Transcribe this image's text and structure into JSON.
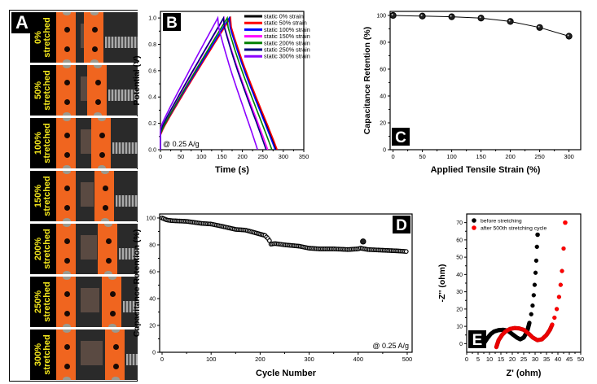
{
  "panel_a": {
    "label": "A",
    "rows": [
      {
        "pct": "0%",
        "word": "stretched",
        "strain": 0
      },
      {
        "pct": "50%",
        "word": "stretched",
        "strain": 50
      },
      {
        "pct": "100%",
        "word": "stretched",
        "strain": 100
      },
      {
        "pct": "150%",
        "word": "stretched",
        "strain": 150
      },
      {
        "pct": "200%",
        "word": "stretched",
        "strain": 200
      },
      {
        "pct": "250%",
        "word": "stretched",
        "strain": 250
      },
      {
        "pct": "300%",
        "word": "stretched",
        "strain": 300
      }
    ]
  },
  "chart_data": [
    {
      "id": "B",
      "panel_label": "B",
      "type": "line",
      "title": "",
      "xlabel": "Time (s)",
      "ylabel": "Potential (V)",
      "xlim": [
        0,
        350
      ],
      "ylim": [
        0,
        1.05
      ],
      "xticks": [
        0,
        50,
        100,
        150,
        200,
        250,
        300,
        350
      ],
      "yticks": [
        0.0,
        0.2,
        0.4,
        0.6,
        0.8,
        1.0
      ],
      "ytick_labels": [
        "0.0",
        "0.2",
        "0.4",
        "0.6",
        "0.8",
        "1.0"
      ],
      "annotation": "@ 0.25 A/g",
      "legend_position": "top-right",
      "series": [
        {
          "name": "static 0% strain",
          "color": "#000000",
          "peak_time": 170,
          "end_time": 283,
          "v0": 0.12
        },
        {
          "name": "static 50% strain",
          "color": "#ff0000",
          "peak_time": 171,
          "end_time": 285,
          "v0": 0.11
        },
        {
          "name": "static 100% strain",
          "color": "#0000ff",
          "peak_time": 168,
          "end_time": 280,
          "v0": 0.12
        },
        {
          "name": "static 150% strain",
          "color": "#ff00ff",
          "peak_time": 155,
          "end_time": 262,
          "v0": 0.13
        },
        {
          "name": "static 200% strain",
          "color": "#008000",
          "peak_time": 163,
          "end_time": 272,
          "v0": 0.12
        },
        {
          "name": "static 250% strain",
          "color": "#000080",
          "peak_time": 154,
          "end_time": 258,
          "v0": 0.14
        },
        {
          "name": "static 300% strain",
          "color": "#8b00ff",
          "peak_time": 140,
          "end_time": 237,
          "v0": 0.16
        }
      ]
    },
    {
      "id": "C",
      "panel_label": "C",
      "type": "line",
      "title": "",
      "xlabel": "Applied Tensile Strain (%)",
      "ylabel": "Capacitance Retention (%)",
      "xlim": [
        -5,
        320
      ],
      "ylim": [
        0,
        103
      ],
      "xticks": [
        0,
        50,
        100,
        150,
        200,
        250,
        300
      ],
      "yticks": [
        0,
        20,
        40,
        60,
        80,
        100
      ],
      "x": [
        0,
        50,
        100,
        150,
        200,
        250,
        300
      ],
      "values": [
        100,
        99.5,
        99,
        98,
        95.5,
        91,
        84.5
      ]
    },
    {
      "id": "D",
      "panel_label": "D",
      "type": "scatter",
      "title": "",
      "xlabel": "Cycle Number",
      "ylabel": "Capacitance Retention (%)",
      "xlim": [
        -5,
        510
      ],
      "ylim": [
        0,
        103
      ],
      "xticks": [
        0,
        100,
        200,
        300,
        400,
        500
      ],
      "yticks": [
        0,
        20,
        40,
        60,
        80,
        100
      ],
      "annotation": "@ 0.25 A/g",
      "x": [
        0,
        10,
        20,
        50,
        80,
        100,
        120,
        150,
        170,
        190,
        210,
        218,
        222,
        230,
        250,
        280,
        300,
        320,
        350,
        380,
        400,
        405,
        410,
        420,
        450,
        480,
        500
      ],
      "values": [
        100,
        98.5,
        98,
        97.5,
        96,
        95.5,
        94,
        91.5,
        91,
        89,
        87,
        84,
        80.5,
        81,
        80,
        79,
        77.5,
        77,
        77,
        76.5,
        77,
        77.5,
        82.5,
        76.5,
        76,
        75.5,
        75
      ]
    },
    {
      "id": "E",
      "panel_label": "E",
      "type": "scatter",
      "title": "",
      "xlabel": "Z' (ohm)",
      "ylabel": "-Z'' (ohm)",
      "xlim": [
        0,
        50
      ],
      "ylim": [
        -5,
        75
      ],
      "xticks": [
        0,
        5,
        10,
        15,
        20,
        25,
        30,
        35,
        40,
        45,
        50
      ],
      "yticks": [
        0,
        10,
        20,
        30,
        40,
        50,
        60,
        70
      ],
      "legend_position": "top-left",
      "series": [
        {
          "name": "before stretching",
          "color": "#000000",
          "x": [
            7.5,
            9,
            10.5,
            12,
            14,
            16,
            18,
            20,
            22,
            23.5,
            25,
            26.5,
            27.5,
            28.3,
            28.9,
            29.4,
            29.8,
            30.2,
            30.5,
            30.8,
            31.1
          ],
          "y": [
            0,
            3,
            5.5,
            7,
            7.8,
            8,
            7.5,
            5.5,
            3.5,
            2.5,
            3.5,
            7,
            12,
            17,
            22,
            28,
            34,
            41,
            48,
            56,
            63
          ]
        },
        {
          "name": "after 500th stretching cycle",
          "color": "#ff0000",
          "x": [
            13,
            14,
            15.5,
            17,
            19,
            21,
            23,
            25,
            27,
            29,
            31,
            33,
            35,
            36.5,
            37.5,
            38.5,
            39.5,
            40.5,
            41.2,
            41.8,
            42.5,
            43.2
          ],
          "y": [
            -2,
            2,
            5,
            7,
            8.5,
            9,
            8.8,
            8,
            6,
            3.5,
            2,
            2.5,
            5,
            8,
            11,
            15,
            20,
            27,
            34,
            42,
            55,
            70
          ]
        }
      ]
    }
  ]
}
